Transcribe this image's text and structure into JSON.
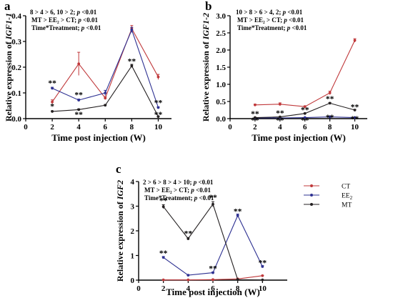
{
  "colors": {
    "CT": "#c0393b",
    "EE2": "#2e3192",
    "MT": "#231f20"
  },
  "legend": [
    {
      "key": "CT",
      "label": "CT",
      "sub": ""
    },
    {
      "key": "EE2",
      "label": "EE",
      "sub": "2"
    },
    {
      "key": "MT",
      "label": "MT",
      "sub": ""
    }
  ],
  "chart_data": [
    {
      "panel": "a",
      "type": "line",
      "xlabel": "Time post injection (W)",
      "ylabel_prefix": "Relative expression of ",
      "ylabel_gene": "IGF1-1",
      "xlim": [
        0,
        11
      ],
      "ylim": [
        0,
        0.4
      ],
      "xticks": [
        0,
        2,
        4,
        6,
        8,
        10
      ],
      "yticks": [
        0,
        0.1,
        0.2,
        0.3,
        0.4
      ],
      "ytick_labels": [
        "0.0",
        "0.1",
        "0.2",
        "0.3",
        "0.4"
      ],
      "x": [
        2,
        4,
        6,
        8,
        10
      ],
      "series": [
        {
          "key": "CT",
          "values": [
            0.065,
            0.213,
            0.08,
            0.35,
            0.162
          ],
          "errors": [
            0.008,
            0.045,
            0.006,
            0.012,
            0.01
          ]
        },
        {
          "key": "EE2",
          "values": [
            0.118,
            0.072,
            0.1,
            0.345,
            0.043
          ],
          "errors": [
            0.004,
            0.004,
            0.01,
            0.01,
            0.003
          ]
        },
        {
          "key": "MT",
          "values": [
            0.028,
            0.035,
            0.052,
            0.205,
            0.008
          ],
          "errors": [
            0.002,
            0.003,
            0.003,
            0.006,
            0.002
          ]
        }
      ],
      "annotations": [
        {
          "text": "**",
          "x": 2,
          "y": 0.128
        },
        {
          "text": "*",
          "x": 2,
          "y": 0.038
        },
        {
          "text": "**",
          "x": 4,
          "y": 0.082
        },
        {
          "text": "**",
          "x": 4,
          "y": 0.006
        },
        {
          "text": "**",
          "x": 8,
          "y": 0.212
        },
        {
          "text": "**",
          "x": 10,
          "y": 0.052
        },
        {
          "text": "**",
          "x": 10,
          "y": 0.006
        }
      ],
      "stats": [
        "8 > 4 > 6, 10 > 2; p <0.01",
        "MT > EE₂ > CT; p <0.01",
        "Time*Treatment; p <0.01"
      ]
    },
    {
      "panel": "b",
      "type": "line",
      "xlabel": "Time post injection (W)",
      "ylabel_prefix": "Relative expression of ",
      "ylabel_gene": "IGF1-2",
      "xlim": [
        0,
        11
      ],
      "ylim": [
        0,
        3.0
      ],
      "xticks": [
        0,
        2,
        4,
        6,
        8,
        10
      ],
      "yticks": [
        0,
        0.5,
        1.0,
        1.5,
        2.0,
        2.5,
        3.0
      ],
      "ytick_labels": [
        "0.0",
        "0.5",
        "1.0",
        "1.5",
        "2.0",
        "2.5",
        "3.0"
      ],
      "x": [
        2,
        4,
        6,
        8,
        10
      ],
      "series": [
        {
          "key": "CT",
          "values": [
            0.4,
            0.42,
            0.35,
            0.75,
            2.28
          ],
          "errors": [
            0.02,
            0.04,
            0.02,
            0.05,
            0.05
          ]
        },
        {
          "key": "EE2",
          "values": [
            0.02,
            0.02,
            0.03,
            0.05,
            0.03
          ],
          "errors": [
            0.005,
            0.005,
            0.005,
            0.005,
            0.005
          ]
        },
        {
          "key": "MT",
          "values": [
            0.03,
            0.05,
            0.15,
            0.45,
            0.25
          ],
          "errors": [
            0.005,
            0.005,
            0.01,
            0.02,
            0.02
          ]
        }
      ],
      "annotations": [
        {
          "text": "**",
          "x": 2,
          "y": 0.06
        },
        {
          "text": "**",
          "x": 2,
          "y": -0.12
        },
        {
          "text": "**",
          "x": 4,
          "y": 0.08
        },
        {
          "text": "**",
          "x": 4,
          "y": -0.12
        },
        {
          "text": "**",
          "x": 6,
          "y": 0.18
        },
        {
          "text": "**",
          "x": 6,
          "y": -0.12
        },
        {
          "text": "**",
          "x": 8,
          "y": 0.5
        },
        {
          "text": "**",
          "x": 8,
          "y": -0.04
        },
        {
          "text": "**",
          "x": 10,
          "y": 0.26
        },
        {
          "text": "**",
          "x": 10,
          "y": -0.08
        }
      ],
      "stats": [
        "10 > 8 > 6 > 4, 2; p <0.01",
        "MT > EE₂ > CT; p <0.01",
        "Time*Treatment; p <0.01"
      ]
    },
    {
      "panel": "c",
      "type": "line",
      "xlabel": "Time post injection (W)",
      "ylabel_prefix": "Relative expression of ",
      "ylabel_gene": "IGF2",
      "xlim": [
        0,
        12
      ],
      "ylim": [
        0,
        4
      ],
      "xticks": [
        0,
        2,
        4,
        6,
        8,
        10
      ],
      "yticks": [
        0,
        1,
        2,
        3,
        4
      ],
      "ytick_labels": [
        "0",
        "1",
        "2",
        "3",
        "4"
      ],
      "x": [
        2,
        4,
        6,
        8,
        10
      ],
      "series": [
        {
          "key": "CT",
          "values": [
            0.01,
            0.01,
            0.02,
            0.05,
            0.18
          ],
          "errors": [
            0.005,
            0.005,
            0.005,
            0.005,
            0.01
          ]
        },
        {
          "key": "EE2",
          "values": [
            0.92,
            0.2,
            0.3,
            2.62,
            0.55
          ],
          "errors": [
            0.04,
            0.02,
            0.03,
            0.06,
            0.04
          ]
        },
        {
          "key": "MT",
          "values": [
            2.98,
            1.68,
            3.08,
            0.02,
            0.01
          ],
          "errors": [
            0.08,
            0.05,
            0.1,
            0.005,
            0.005
          ]
        }
      ],
      "annotations": [
        {
          "text": "**",
          "x": 2,
          "y": 3.12
        },
        {
          "text": "**",
          "x": 2,
          "y": 0.98
        },
        {
          "text": "**",
          "x": 4,
          "y": 1.78
        },
        {
          "text": "**",
          "x": 6,
          "y": 3.24
        },
        {
          "text": "**",
          "x": 6,
          "y": 0.36
        },
        {
          "text": "**",
          "x": 8,
          "y": 2.68
        },
        {
          "text": "**",
          "x": 10,
          "y": 0.6
        }
      ],
      "stats": [
        "2 > 6 > 8 > 4 > 10; p <0.01",
        "MT > EE₂ > CT; p <0.01",
        "Time*Treatment; p <0.01"
      ]
    }
  ]
}
